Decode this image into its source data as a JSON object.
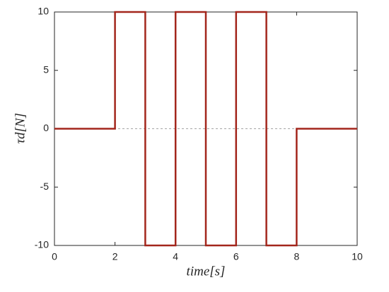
{
  "chart_data": {
    "type": "line",
    "xlabel": "time[s]",
    "ylabel": "τd[N]",
    "x": [
      0,
      2,
      2,
      3,
      3,
      4,
      4,
      5,
      5,
      6,
      6,
      7,
      7,
      8,
      8,
      10
    ],
    "series": [
      {
        "color": "#a3261c",
        "values": [
          0,
          0,
          10,
          10,
          -10,
          -10,
          10,
          10,
          -10,
          -10,
          10,
          10,
          -10,
          -10,
          0,
          0
        ]
      }
    ],
    "hline": 0,
    "xlim": [
      0,
      10
    ],
    "xticks": [
      0,
      2,
      4,
      6,
      8,
      10
    ],
    "ylim": [
      -10,
      10
    ],
    "yticks": [
      -10,
      -5,
      0,
      5,
      10
    ]
  }
}
